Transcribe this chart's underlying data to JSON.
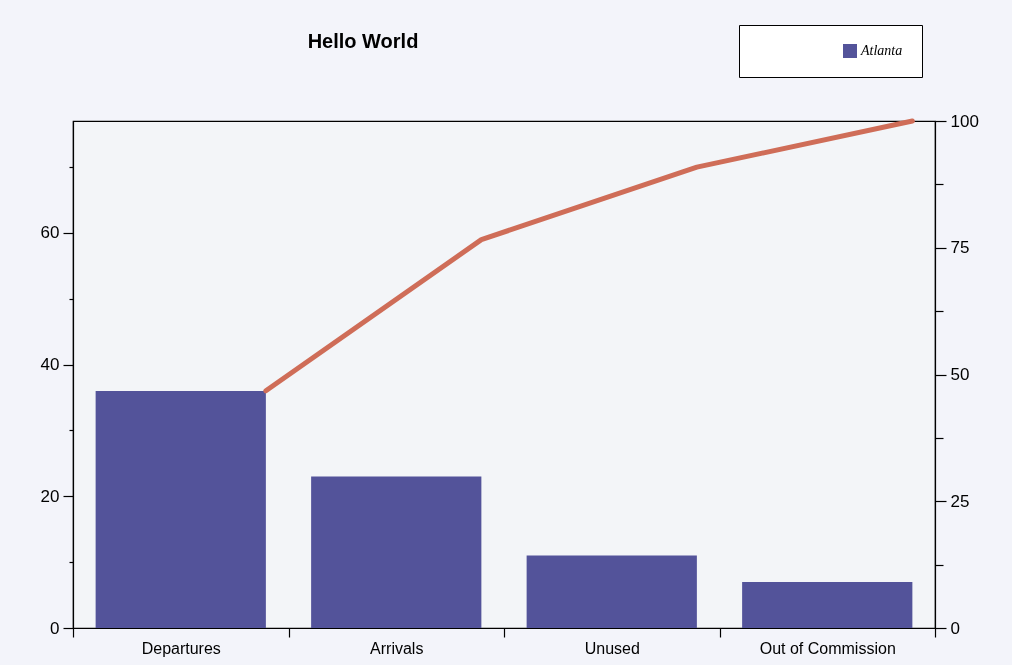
{
  "chart_data": {
    "type": "bar",
    "title": "Hello World",
    "categories": [
      "Departures",
      "Arrivals",
      "Unused",
      "Out of Commission"
    ],
    "series": [
      {
        "name": "Atlanta",
        "color": "#53539a",
        "values": [
          36,
          23,
          11,
          7
        ]
      },
      {
        "type": "line",
        "axis": "y2",
        "color": "#cf6d58",
        "values": [
          46.8,
          76.6,
          90.9,
          100
        ]
      }
    ],
    "ylim": [
      0,
      77
    ],
    "yticks": [
      0,
      {
        "value": 10,
        "label": null
      },
      20,
      {
        "value": 30,
        "label": null
      },
      40,
      {
        "value": 50,
        "label": null
      },
      60,
      {
        "value": 70,
        "label": null
      }
    ],
    "y2lim": [
      0,
      100
    ],
    "y2ticks": [
      0,
      {
        "value": 12.5,
        "label": null
      },
      25,
      {
        "value": 37.5,
        "label": null
      },
      50,
      {
        "value": 62.5,
        "label": null
      },
      75,
      {
        "value": 87.5,
        "label": null
      },
      100
    ],
    "legend": "top right",
    "grid": false
  }
}
